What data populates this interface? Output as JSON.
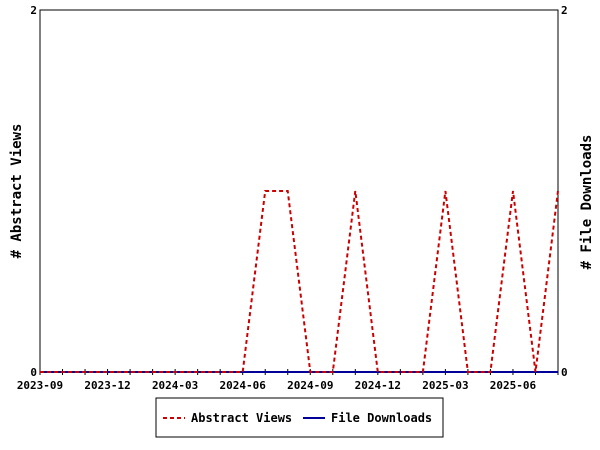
{
  "chart_data": {
    "type": "line",
    "x_tick_labels": [
      "2023-09",
      "2023-12",
      "2024-03",
      "2024-06",
      "2024-09",
      "2024-12",
      "2025-03",
      "2025-06"
    ],
    "x_tick_dates": [
      "2023-09",
      "2023-12",
      "2024-03",
      "2024-06",
      "2024-09",
      "2024-12",
      "2025-03",
      "2025-06"
    ],
    "x_range": [
      "2023-09",
      "2025-08"
    ],
    "y_left": {
      "label": "# Abstract Views",
      "range": [
        0,
        2
      ],
      "ticks": [
        "0",
        "2"
      ]
    },
    "y_right": {
      "label": "# File Downloads",
      "range": [
        0,
        2
      ],
      "ticks": [
        "0",
        "2"
      ]
    },
    "x": [
      "2023-09",
      "2023-10",
      "2023-11",
      "2023-12",
      "2024-01",
      "2024-02",
      "2024-03",
      "2024-04",
      "2024-05",
      "2024-06",
      "2024-07",
      "2024-08",
      "2024-09",
      "2024-10",
      "2024-11",
      "2024-12",
      "2025-01",
      "2025-02",
      "2025-03",
      "2025-04",
      "2025-05",
      "2025-06",
      "2025-07",
      "2025-08"
    ],
    "series": [
      {
        "name": "Abstract Views",
        "color": "#cc0000",
        "style": "dashed",
        "values": [
          0,
          0,
          0,
          0,
          0,
          0,
          0,
          0,
          0,
          0,
          1,
          1,
          0,
          0,
          1,
          0,
          0,
          0,
          1,
          0,
          0,
          1,
          0,
          1
        ]
      },
      {
        "name": "File Downloads",
        "color": "#000099",
        "style": "solid",
        "values": [
          0,
          0,
          0,
          0,
          0,
          0,
          0,
          0,
          0,
          0,
          0,
          0,
          0,
          0,
          0,
          0,
          0,
          0,
          0,
          0,
          0,
          0,
          0,
          0
        ]
      }
    ],
    "legend_position": "bottom-center",
    "grid": false
  }
}
